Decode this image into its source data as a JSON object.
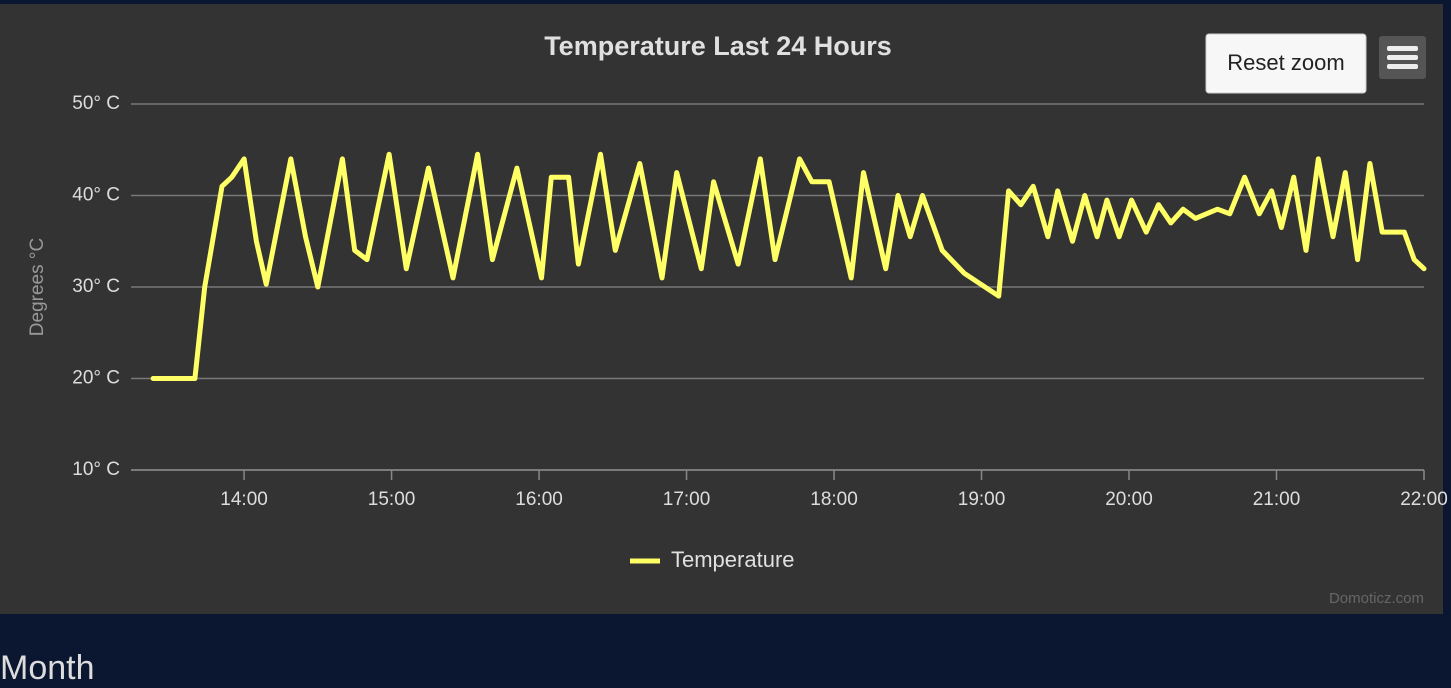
{
  "chart_data": {
    "type": "line",
    "title": "Temperature Last 24 Hours",
    "y_label": "Degrees °C",
    "reset_button": "Reset zoom",
    "credits": "Domoticz.com",
    "section_below": "Month",
    "x": [
      "13:23",
      "13:40",
      "13:44",
      "13:51",
      "13:55",
      "14:00",
      "14:05",
      "14:09",
      "14:19",
      "14:25",
      "14:30",
      "14:40",
      "14:45",
      "14:50",
      "14:59",
      "15:06",
      "15:15",
      "15:25",
      "15:35",
      "15:41",
      "15:51",
      "16:01",
      "16:05",
      "16:12",
      "16:16",
      "16:25",
      "16:31",
      "16:41",
      "16:50",
      "16:56",
      "17:06",
      "17:11",
      "17:21",
      "17:30",
      "17:36",
      "17:46",
      "17:51",
      "17:58",
      "18:07",
      "18:12",
      "18:21",
      "18:26",
      "18:31",
      "18:36",
      "18:44",
      "18:53",
      "19:07",
      "19:11",
      "19:16",
      "19:21",
      "19:27",
      "19:31",
      "19:37",
      "19:42",
      "19:47",
      "19:51",
      "19:56",
      "20:01",
      "20:07",
      "20:12",
      "20:17",
      "20:22",
      "20:27",
      "20:36",
      "20:41",
      "20:47",
      "20:53",
      "20:58",
      "21:02",
      "21:07",
      "21:12",
      "21:17",
      "21:23",
      "21:28",
      "21:33",
      "21:38",
      "21:43",
      "21:52",
      "21:56",
      "22:00"
    ],
    "series": [
      {
        "name": "Temperature",
        "color": "#ffff66",
        "values": [
          20,
          20,
          30,
          41,
          42,
          44,
          35,
          30.3,
          44,
          35.5,
          30,
          44,
          34,
          33,
          44.5,
          32,
          43,
          31,
          44.5,
          33,
          43,
          31,
          42,
          42,
          32.5,
          44.5,
          34,
          43.5,
          31,
          42.5,
          32,
          41.5,
          32.5,
          44,
          33,
          44,
          41.5,
          41.5,
          31,
          42.5,
          32,
          40,
          35.5,
          40,
          34,
          31.5,
          29,
          40.5,
          39,
          41,
          35.5,
          40.5,
          35,
          40,
          35.5,
          39.5,
          35.5,
          39.5,
          36,
          39,
          37,
          38.5,
          37.5,
          38.5,
          38,
          42,
          38,
          40.5,
          36.5,
          42,
          34,
          44,
          35.5,
          42.5,
          33,
          43.5,
          36,
          36,
          33,
          32
        ]
      }
    ],
    "xlim": [
      "13:14",
      "22:00"
    ],
    "xticks": [
      "14:00",
      "15:00",
      "16:00",
      "17:00",
      "18:00",
      "19:00",
      "20:00",
      "21:00",
      "22:00"
    ],
    "ylim": [
      10,
      50
    ],
    "yticks": [
      {
        "value": 10,
        "label": "10° C"
      },
      {
        "value": 20,
        "label": "20° C"
      },
      {
        "value": 30,
        "label": "30° C"
      },
      {
        "value": 40,
        "label": "40° C"
      },
      {
        "value": 50,
        "label": "50° C"
      }
    ],
    "grid": true,
    "legend": "bottom"
  }
}
